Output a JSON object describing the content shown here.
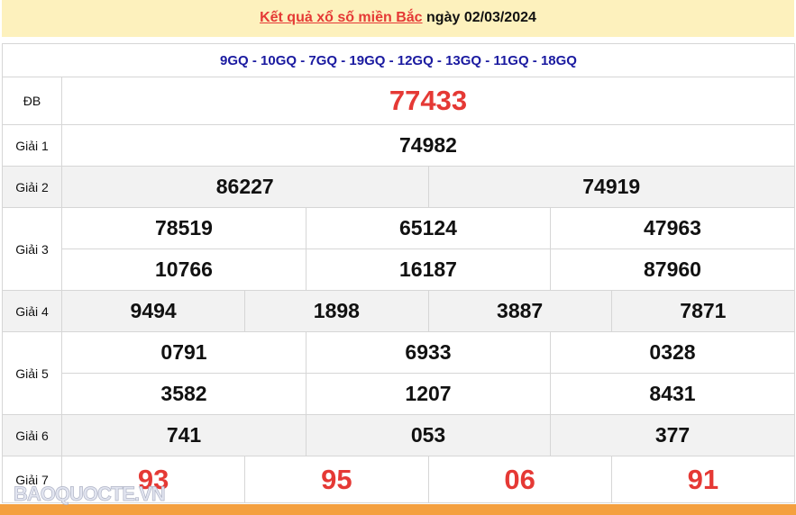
{
  "header": {
    "link": "Kết quả xổ số miền Bắc",
    "date_text": "ngày 02/03/2024"
  },
  "codes": "9GQ - 10GQ - 7GQ - 19GQ - 12GQ - 13GQ - 11GQ - 18GQ",
  "labels": {
    "db": "ĐB",
    "g1": "Giải 1",
    "g2": "Giải 2",
    "g3": "Giải 3",
    "g4": "Giải 4",
    "g5": "Giải 5",
    "g6": "Giải 6",
    "g7": "Giải 7"
  },
  "db": "77433",
  "g1": "74982",
  "g2": [
    "86227",
    "74919"
  ],
  "g3": [
    "78519",
    "65124",
    "47963",
    "10766",
    "16187",
    "87960"
  ],
  "g4": [
    "9494",
    "1898",
    "3887",
    "7871"
  ],
  "g5": [
    "0791",
    "6933",
    "0328",
    "3582",
    "1207",
    "8431"
  ],
  "g6": [
    "741",
    "053",
    "377"
  ],
  "g7": [
    "93",
    "95",
    "06",
    "91"
  ],
  "watermark": "BAOQUOCTE.VN",
  "colors": {
    "accent": "#e53935",
    "codes": "#1a1aa0",
    "header_bg": "#fdf1bd",
    "footer_bar": "#f4a040"
  }
}
